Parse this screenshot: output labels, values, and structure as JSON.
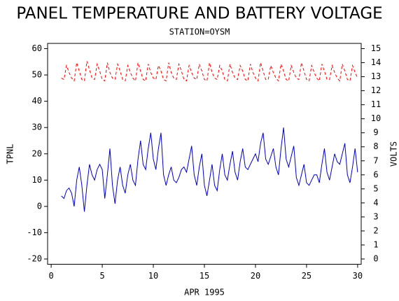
{
  "chart_data": {
    "type": "line",
    "title": "PANEL TEMPERATURE AND BATTERY VOLTAGE",
    "subtitle": "STATION=OYSM",
    "x_label": "APR 1995",
    "y_label": "TPNL",
    "y2_label": "VOLTS",
    "x": [
      1,
      1.25,
      1.5,
      1.75,
      2,
      2.25,
      2.5,
      2.75,
      3,
      3.25,
      3.5,
      3.75,
      4,
      4.25,
      4.5,
      4.75,
      5,
      5.25,
      5.5,
      5.75,
      6,
      6.25,
      6.5,
      6.75,
      7,
      7.25,
      7.5,
      7.75,
      8,
      8.25,
      8.5,
      8.75,
      9,
      9.25,
      9.5,
      9.75,
      10,
      10.25,
      10.5,
      10.75,
      11,
      11.25,
      11.5,
      11.75,
      12,
      12.25,
      12.5,
      12.75,
      13,
      13.25,
      13.5,
      13.75,
      14,
      14.25,
      14.5,
      14.75,
      15,
      15.25,
      15.5,
      15.75,
      16,
      16.25,
      16.5,
      16.75,
      17,
      17.25,
      17.5,
      17.75,
      18,
      18.25,
      18.5,
      18.75,
      19,
      19.25,
      19.5,
      19.75,
      20,
      20.25,
      20.5,
      20.75,
      21,
      21.25,
      21.5,
      21.75,
      22,
      22.25,
      22.5,
      22.75,
      23,
      23.25,
      23.5,
      23.75,
      24,
      24.25,
      24.5,
      24.75,
      25,
      25.25,
      25.5,
      25.75,
      26,
      26.25,
      26.5,
      26.75,
      27,
      27.25,
      27.5,
      27.75,
      28,
      28.25,
      28.5,
      28.75,
      29,
      29.25,
      29.5,
      29.75,
      30
    ],
    "series": [
      {
        "name": "TPNL",
        "color": "#0000cc",
        "style": "solid",
        "axis": "y",
        "values": [
          4,
          3,
          6,
          7,
          5,
          0,
          10,
          15,
          8,
          -2,
          8,
          16,
          12,
          10,
          14,
          16,
          14,
          3,
          12,
          22,
          8,
          1,
          10,
          15,
          8,
          5,
          12,
          16,
          10,
          8,
          18,
          25,
          16,
          14,
          22,
          28,
          18,
          14,
          22,
          28,
          12,
          8,
          12,
          15,
          10,
          9,
          11,
          14,
          15,
          13,
          18,
          23,
          12,
          8,
          15,
          20,
          8,
          4,
          10,
          16,
          8,
          6,
          14,
          20,
          12,
          10,
          16,
          21,
          13,
          10,
          17,
          22,
          15,
          14,
          16,
          18,
          20,
          17,
          24,
          28,
          18,
          16,
          19,
          22,
          15,
          12,
          22,
          30,
          18,
          15,
          19,
          23,
          11,
          8,
          12,
          16,
          9,
          8,
          10,
          12,
          12,
          9,
          16,
          22,
          13,
          10,
          15,
          20,
          17,
          16,
          20,
          24,
          12,
          9,
          15,
          22,
          13
        ]
      },
      {
        "name": "VOLTS",
        "color": "#ff0000",
        "style": "dashed",
        "axis": "y2",
        "values": [
          12.9,
          12.8,
          13.8,
          13.3,
          12.9,
          12.7,
          14.0,
          13.4,
          12.8,
          12.7,
          14.1,
          13.5,
          12.9,
          12.8,
          13.9,
          13.4,
          12.8,
          12.7,
          14.0,
          13.3,
          12.9,
          12.8,
          13.9,
          13.4,
          12.8,
          12.7,
          13.8,
          13.3,
          12.9,
          12.7,
          14.0,
          13.4,
          12.8,
          12.7,
          13.9,
          13.3,
          12.9,
          12.8,
          13.8,
          13.4,
          12.8,
          12.7,
          14.0,
          13.3,
          12.9,
          12.8,
          13.9,
          13.4,
          12.8,
          12.7,
          13.8,
          13.3,
          12.9,
          12.8,
          13.9,
          13.4,
          12.8,
          12.7,
          14.0,
          13.3,
          12.9,
          12.8,
          13.8,
          13.4,
          12.8,
          12.7,
          13.9,
          13.3,
          12.9,
          12.8,
          13.8,
          13.4,
          12.8,
          12.7,
          13.9,
          13.3,
          12.9,
          12.7,
          14.0,
          13.4,
          12.8,
          12.8,
          13.8,
          13.3,
          12.9,
          12.7,
          13.9,
          13.4,
          12.8,
          12.7,
          13.8,
          13.3,
          12.9,
          12.8,
          14.0,
          13.4,
          12.8,
          12.7,
          13.8,
          13.3,
          12.9,
          12.7,
          13.9,
          13.4,
          12.8,
          12.8,
          13.8,
          13.3,
          12.9,
          12.7,
          13.9,
          13.4,
          12.8,
          12.7,
          13.8,
          13.3,
          12.9
        ]
      }
    ],
    "xlim": [
      -0.35,
      30.35
    ],
    "xticks": [
      0,
      5,
      10,
      15,
      20,
      25,
      30
    ],
    "ylim": [
      -22,
      62
    ],
    "yticks": [
      -20,
      -10,
      0,
      10,
      20,
      30,
      40,
      50,
      60
    ],
    "y2lim": [
      -0.375,
      15.375
    ],
    "y2ticks": [
      0,
      1,
      2,
      3,
      4,
      5,
      6,
      7,
      8,
      9,
      10,
      11,
      12,
      13,
      14,
      15
    ],
    "grid": false
  }
}
